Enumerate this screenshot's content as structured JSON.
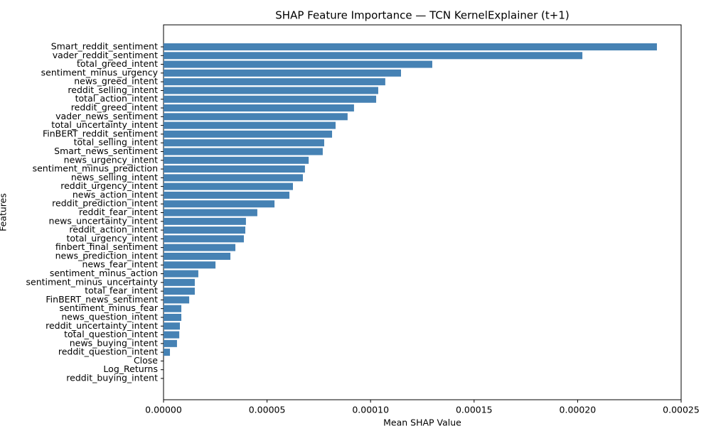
{
  "chart_data": {
    "type": "barh",
    "title": "SHAP Feature Importance — TCN KernelExplainer (t+1)",
    "x_label": "Mean SHAP Value",
    "y_label": "Features",
    "color": "#4682b4",
    "categories": [
      "Smart_reddit_sentiment",
      "vader_reddit_sentiment",
      "total_greed_intent",
      "sentiment_minus_urgency",
      "news_greed_intent",
      "reddit_selling_intent",
      "total_action_intent",
      "reddit_greed_intent",
      "vader_news_sentiment",
      "total_uncertainty_intent",
      "FinBERT_reddit_sentiment",
      "total_selling_intent",
      "Smart_news_sentiment",
      "news_urgency_intent",
      "sentiment_minus_prediction",
      "news_selling_intent",
      "reddit_urgency_intent",
      "news_action_intent",
      "reddit_prediction_intent",
      "reddit_fear_intent",
      "news_uncertainty_intent",
      "reddit_action_intent",
      "total_urgency_intent",
      "finbert_final_sentiment",
      "news_prediction_intent",
      "news_fear_intent",
      "sentiment_minus_action",
      "sentiment_minus_uncertainty",
      "total_fear_intent",
      "FinBERT_news_sentiment",
      "sentiment_minus_fear",
      "news_question_intent",
      "reddit_uncertainty_intent",
      "total_question_intent",
      "news_buying_intent",
      "reddit_question_intent",
      "Close",
      "Log_Returns",
      "reddit_buying_intent"
    ],
    "values": [
      0.0002383,
      0.0002023,
      0.0001298,
      0.0001147,
      0.0001071,
      0.0001037,
      0.0001027,
      9.2e-05,
      8.89e-05,
      8.31e-05,
      8.14e-05,
      7.76e-05,
      7.69e-05,
      7.01e-05,
      6.83e-05,
      6.73e-05,
      6.25e-05,
      6.08e-05,
      5.36e-05,
      4.53e-05,
      3.98e-05,
      3.95e-05,
      3.88e-05,
      3.47e-05,
      3.23e-05,
      2.51e-05,
      1.68e-05,
      1.51e-05,
      1.51e-05,
      1.24e-05,
      8.6e-06,
      8.6e-06,
      7.9e-06,
      7.6e-06,
      6.5e-06,
      3.1e-06,
      0,
      0,
      0
    ],
    "xlim": [
      0,
      0.00025
    ],
    "xticks": [
      {
        "value": 0,
        "label": "0.00000"
      },
      {
        "value": 5e-05,
        "label": "0.00005"
      },
      {
        "value": 0.0001,
        "label": "0.00010"
      },
      {
        "value": 0.00015,
        "label": "0.00015"
      },
      {
        "value": 0.0002,
        "label": "0.00020"
      },
      {
        "value": 0.00025,
        "label": "0.00025"
      }
    ]
  }
}
